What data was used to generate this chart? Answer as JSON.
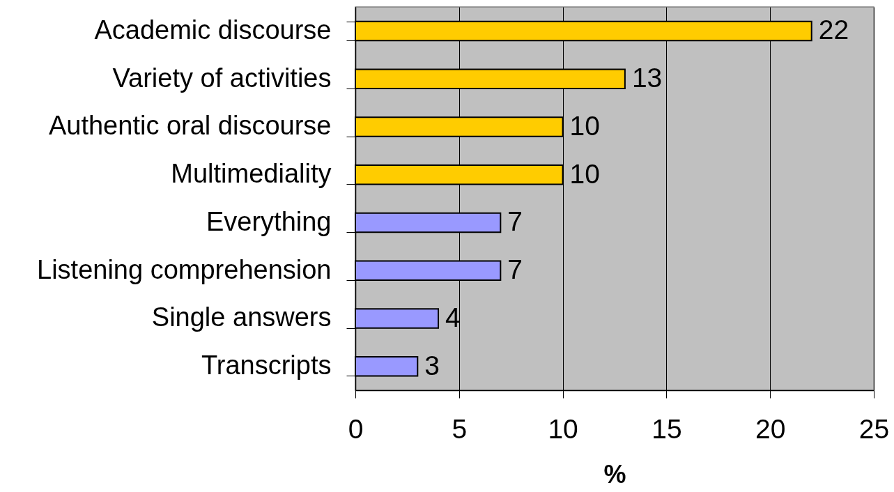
{
  "chart_data": {
    "type": "bar",
    "orientation": "horizontal",
    "categories": [
      "Academic discourse",
      "Variety of activities",
      "Authentic oral discourse",
      "Multimediality",
      "Everything",
      "Listening comprehension",
      "Single answers",
      "Transcripts"
    ],
    "values": [
      22,
      13,
      10,
      10,
      7,
      7,
      4,
      3
    ],
    "colors": [
      "#ffcc00",
      "#ffcc00",
      "#ffcc00",
      "#ffcc00",
      "#9999ff",
      "#9999ff",
      "#9999ff",
      "#9999ff"
    ],
    "xlabel": "%",
    "xlim": [
      0,
      25
    ],
    "xticks": [
      0,
      5,
      10,
      15,
      20,
      25
    ],
    "grid": "x",
    "data_labels": true
  }
}
